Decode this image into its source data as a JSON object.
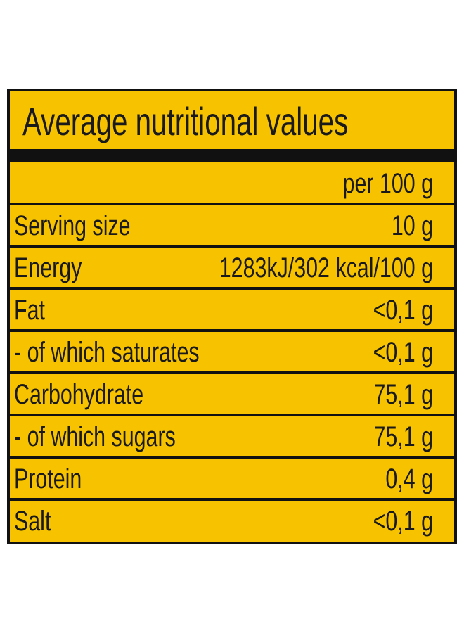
{
  "title": "Average nutritional values",
  "header": "per 100 g",
  "rows": [
    [
      "Serving size",
      "10 g"
    ],
    [
      "Energy",
      "1283kJ/302 kcal/100 g"
    ],
    [
      "Fat",
      "<0,1 g"
    ],
    [
      "- of which saturates",
      "<0,1 g"
    ],
    [
      "Carbohydrate",
      "75,1 g"
    ],
    [
      "- of which sugars",
      "75,1 g"
    ],
    [
      "Protein",
      "0,4 g"
    ],
    [
      "Salt",
      "<0,1 g"
    ]
  ]
}
